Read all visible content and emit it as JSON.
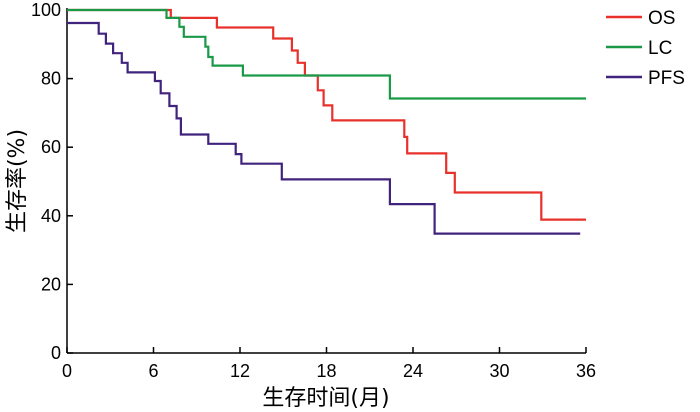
{
  "chart_data": {
    "type": "line",
    "step": true,
    "xlabel": "生存时间(月)",
    "ylabel": "生存率(%)",
    "xlim": [
      0,
      36
    ],
    "ylim": [
      0,
      100
    ],
    "xticks": [
      0,
      6,
      12,
      18,
      24,
      30,
      36
    ],
    "yticks": [
      0,
      20,
      40,
      60,
      80,
      100
    ],
    "grid": false,
    "legend_position": "top-right",
    "series": [
      {
        "name": "OS",
        "color": "#e8312b",
        "points": [
          [
            0,
            100
          ],
          [
            7.2,
            100
          ],
          [
            7.2,
            97.7
          ],
          [
            10.4,
            97.7
          ],
          [
            10.4,
            94.9
          ],
          [
            14.3,
            94.9
          ],
          [
            14.3,
            91.7
          ],
          [
            15.6,
            91.7
          ],
          [
            15.6,
            88.2
          ],
          [
            16.0,
            88.2
          ],
          [
            16.0,
            84.6
          ],
          [
            16.5,
            84.6
          ],
          [
            16.5,
            80.9
          ],
          [
            17.4,
            80.9
          ],
          [
            17.4,
            76.6
          ],
          [
            17.8,
            76.6
          ],
          [
            17.8,
            72.2
          ],
          [
            18.4,
            72.2
          ],
          [
            18.4,
            67.8
          ],
          [
            23.4,
            67.8
          ],
          [
            23.4,
            63.0
          ],
          [
            23.6,
            63.0
          ],
          [
            23.6,
            58.2
          ],
          [
            26.3,
            58.2
          ],
          [
            26.3,
            52.5
          ],
          [
            26.9,
            52.5
          ],
          [
            26.9,
            46.8
          ],
          [
            32.9,
            46.8
          ],
          [
            32.9,
            38.9
          ],
          [
            36.0,
            38.9
          ]
        ]
      },
      {
        "name": "LC",
        "color": "#1a9a47",
        "points": [
          [
            0,
            100
          ],
          [
            6.9,
            100
          ],
          [
            6.9,
            97.7
          ],
          [
            7.8,
            97.7
          ],
          [
            7.8,
            95.1
          ],
          [
            8.1,
            95.1
          ],
          [
            8.1,
            92.2
          ],
          [
            9.6,
            92.2
          ],
          [
            9.6,
            89.3
          ],
          [
            9.8,
            89.3
          ],
          [
            9.8,
            86.3
          ],
          [
            10.1,
            86.3
          ],
          [
            10.1,
            83.8
          ],
          [
            12.2,
            83.8
          ],
          [
            12.2,
            80.9
          ],
          [
            22.4,
            80.9
          ],
          [
            22.4,
            74.2
          ],
          [
            36.0,
            74.2
          ]
        ]
      },
      {
        "name": "PFS",
        "color": "#40237c",
        "points": [
          [
            0,
            96.2
          ],
          [
            2.2,
            96.2
          ],
          [
            2.2,
            93.1
          ],
          [
            2.7,
            93.1
          ],
          [
            2.7,
            90.2
          ],
          [
            3.2,
            90.2
          ],
          [
            3.2,
            87.4
          ],
          [
            3.8,
            87.4
          ],
          [
            3.8,
            84.6
          ],
          [
            4.2,
            84.6
          ],
          [
            4.2,
            81.8
          ],
          [
            6.1,
            81.8
          ],
          [
            6.1,
            79.3
          ],
          [
            6.5,
            79.3
          ],
          [
            6.5,
            75.7
          ],
          [
            7.1,
            75.7
          ],
          [
            7.1,
            72.0
          ],
          [
            7.6,
            72.0
          ],
          [
            7.6,
            68.4
          ],
          [
            7.9,
            68.4
          ],
          [
            7.9,
            63.7
          ],
          [
            9.8,
            63.7
          ],
          [
            9.8,
            61.0
          ],
          [
            11.7,
            61.0
          ],
          [
            11.7,
            58.0
          ],
          [
            12.1,
            58.0
          ],
          [
            12.1,
            55.2
          ],
          [
            14.9,
            55.2
          ],
          [
            14.9,
            50.6
          ],
          [
            22.4,
            50.6
          ],
          [
            22.4,
            43.4
          ],
          [
            25.5,
            43.4
          ],
          [
            25.5,
            34.8
          ],
          [
            35.6,
            34.8
          ]
        ]
      }
    ]
  }
}
